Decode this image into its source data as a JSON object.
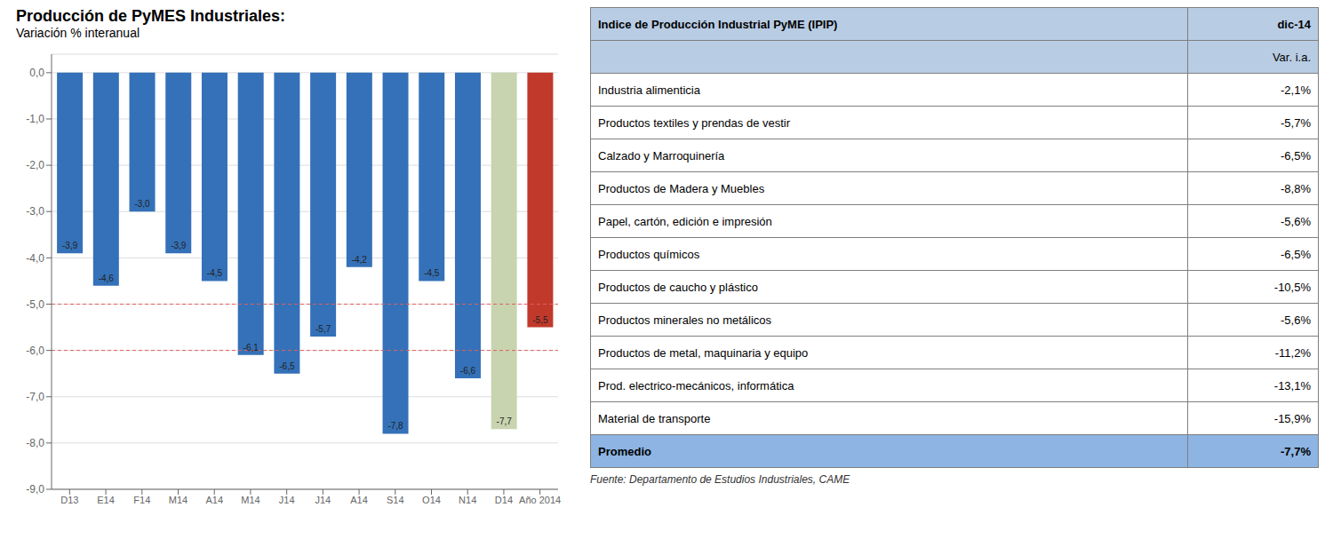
{
  "chart_data": [
    {
      "type": "bar",
      "title": "Producción de PyMES Industriales:",
      "subtitle": "Variación % interanual",
      "categories": [
        "D13",
        "E14",
        "F14",
        "M14",
        "A14",
        "M14",
        "J14",
        "J14",
        "A14",
        "S14",
        "O14",
        "N14",
        "D14",
        "Año 2014"
      ],
      "values": [
        -3.9,
        -4.6,
        -3.0,
        -3.9,
        -4.5,
        -6.1,
        -6.5,
        -5.7,
        -4.2,
        -7.8,
        -4.5,
        -6.6,
        -7.7,
        -5.5
      ],
      "value_labels": [
        "-3,9",
        "-4,6",
        "-3,0",
        "-3,9",
        "-4,5",
        "-6,1",
        "-6,5",
        "-5,7",
        "-4,2",
        "-7,8",
        "-4,5",
        "-6,6",
        "-7,7",
        "-5,5"
      ],
      "colors": [
        "#3471B8",
        "#3471B8",
        "#3471B8",
        "#3471B8",
        "#3471B8",
        "#3471B8",
        "#3471B8",
        "#3471B8",
        "#3471B8",
        "#3471B8",
        "#3471B8",
        "#3471B8",
        "#C8D4B0",
        "#C0392B"
      ],
      "data_labels": true,
      "ylim": [
        -9.0,
        0.4
      ],
      "yticks": [
        {
          "value": 0.0,
          "label": "0,0"
        },
        {
          "value": -1.0,
          "label": "-1,0"
        },
        {
          "value": -2.0,
          "label": "-2,0"
        },
        {
          "value": -3.0,
          "label": "-3,0"
        },
        {
          "value": -4.0,
          "label": "-4,0"
        },
        {
          "value": -5.0,
          "label": "-5,0"
        },
        {
          "value": -6.0,
          "label": "-6,0"
        },
        {
          "value": -7.0,
          "label": "-7,0"
        },
        {
          "value": -8.0,
          "label": "-8,0"
        },
        {
          "value": -9.0,
          "label": "-9,0"
        }
      ],
      "grid": true,
      "reference_lines": [
        {
          "value": -5.0,
          "color": "#E06060",
          "line_style": "dashed"
        },
        {
          "value": -6.0,
          "color": "#E06060",
          "line_style": "dashed"
        }
      ]
    },
    {
      "type": "table",
      "header": [
        [
          "Indice de Producción Industrial PyME (IPIP)",
          "dic-14"
        ],
        [
          null,
          "Var. i.a."
        ]
      ],
      "header_color": "#B8CCE4",
      "rows": [
        {
          "label": "Industria alimenticia",
          "value": -2.1,
          "value_label": "-2,1%"
        },
        {
          "label": "Productos textiles y prendas de vestir",
          "value": -5.7,
          "value_label": "-5,7%"
        },
        {
          "label": "Calzado y Marroquinería",
          "value": -6.5,
          "value_label": "-6,5%"
        },
        {
          "label": "Productos de Madera y Muebles",
          "value": -8.8,
          "value_label": "-8,8%"
        },
        {
          "label": "Papel, cartón, edición e impresión",
          "value": -5.6,
          "value_label": "-5,6%"
        },
        {
          "label": "Productos químicos",
          "value": -6.5,
          "value_label": "-6,5%"
        },
        {
          "label": "Productos de caucho y plástico",
          "value": -10.5,
          "value_label": "-10,5%"
        },
        {
          "label": "Productos minerales no metálicos",
          "value": -5.6,
          "value_label": "-5,6%"
        },
        {
          "label": "Productos de metal, maquinaria y equipo",
          "value": -11.2,
          "value_label": "-11,2%"
        },
        {
          "label": "Prod. electrico-mecánicos, informática",
          "value": -13.1,
          "value_label": "-13,1%"
        },
        {
          "label": "Material de transporte",
          "value": -15.9,
          "value_label": "-15,9%"
        },
        {
          "label": "Promedio",
          "value": -7.7,
          "value_label": "-7,7%"
        }
      ],
      "colors": [
        "#FFFFFF",
        "#FFFFFF",
        "#FFFFFF",
        "#FFFFFF",
        "#FFFFFF",
        "#FFFFFF",
        "#FFFFFF",
        "#FFFFFF",
        "#FFFFFF",
        "#FFFFFF",
        "#FFFFFF",
        "#8DB4E2"
      ],
      "border_color": "#7F7F7F",
      "annotations": [
        "Fuente: Departamento de Estudios Industriales, CAME"
      ]
    }
  ]
}
